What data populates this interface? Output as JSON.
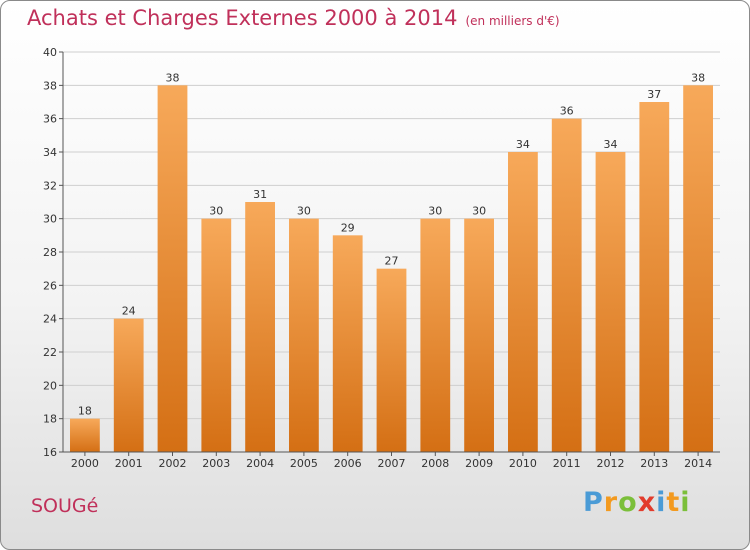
{
  "header": {
    "title": "Achats et Charges Externes 2000 à 2014",
    "subtitle": "(en milliers d'€)"
  },
  "commune": "SOUGé",
  "brand": {
    "letters": [
      "P",
      "r",
      "o",
      "x",
      "i",
      "t",
      "i"
    ],
    "colors": [
      "#4a9bd6",
      "#f39a1f",
      "#7bbf3a",
      "#e23c2c",
      "#4a9bd6",
      "#f39a1f",
      "#7bbf3a"
    ]
  },
  "colors": {
    "bar_top": "#f7a95a",
    "bar_bottom": "#d46f14",
    "title": "#c0305a"
  },
  "chart_data": {
    "type": "bar",
    "categories": [
      "2000",
      "2001",
      "2002",
      "2003",
      "2004",
      "2005",
      "2006",
      "2007",
      "2008",
      "2009",
      "2010",
      "2011",
      "2012",
      "2013",
      "2014"
    ],
    "values": [
      18,
      24,
      38,
      30,
      31,
      30,
      29,
      27,
      30,
      30,
      34,
      36,
      34,
      37,
      38
    ],
    "ylim": [
      16,
      40
    ],
    "yticks": [
      16,
      18,
      20,
      22,
      24,
      26,
      28,
      30,
      32,
      34,
      36,
      38,
      40
    ],
    "grid": true
  }
}
